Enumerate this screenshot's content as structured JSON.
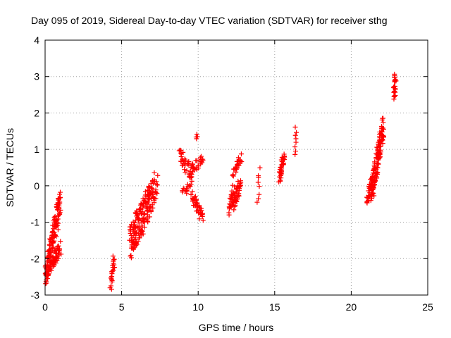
{
  "chart_data": {
    "type": "scatter",
    "title": "Day 095 of 2019, Sidereal Day-to-day VTEC variation (SDTVAR) for receiver sthg",
    "xlabel": "GPS time / hours",
    "ylabel": "SDTVAR / TECUs",
    "xlim": [
      0,
      25
    ],
    "ylim": [
      -3,
      4
    ],
    "xticks": [
      "0",
      "5",
      "10",
      "15",
      "20",
      "25"
    ],
    "yticks": [
      "-3",
      "-2",
      "-1",
      "0",
      "1",
      "2",
      "3",
      "4"
    ],
    "grid": true,
    "marker": "plus",
    "color": "#ff0000",
    "clusters": [
      {
        "x0": 0.0,
        "x1": 1.0,
        "y0": -2.55,
        "y1": -0.4,
        "n": 140,
        "spread": 0.35
      },
      {
        "x0": 0.2,
        "x1": 1.0,
        "y0": -2.3,
        "y1": -1.7,
        "n": 60,
        "spread": 0.2
      },
      {
        "x0": 4.3,
        "x1": 4.5,
        "y0": -2.75,
        "y1": -2.0,
        "n": 25,
        "spread": 0.15
      },
      {
        "x0": 5.6,
        "x1": 7.3,
        "y0": -1.5,
        "y1": 0.1,
        "n": 120,
        "spread": 0.45
      },
      {
        "x0": 5.5,
        "x1": 7.0,
        "y0": -1.55,
        "y1": -0.3,
        "n": 80,
        "spread": 0.5
      },
      {
        "x0": 8.8,
        "x1": 9.6,
        "y0": 0.9,
        "y1": 0.25,
        "n": 40,
        "spread": 0.2
      },
      {
        "x0": 9.0,
        "x1": 9.5,
        "y0": -0.2,
        "y1": 0.0,
        "n": 15,
        "spread": 0.1
      },
      {
        "x0": 9.6,
        "x1": 10.3,
        "y0": -0.3,
        "y1": -0.85,
        "n": 40,
        "spread": 0.2
      },
      {
        "x0": 9.6,
        "x1": 10.3,
        "y0": 0.45,
        "y1": 0.75,
        "n": 25,
        "spread": 0.15
      },
      {
        "x0": 9.9,
        "x1": 9.9,
        "y0": 1.28,
        "y1": 1.42,
        "n": 4,
        "spread": 0.03
      },
      {
        "x0": 12.0,
        "x1": 12.3,
        "y0": -0.7,
        "y1": -0.1,
        "n": 25,
        "spread": 0.15
      },
      {
        "x0": 12.3,
        "x1": 12.8,
        "y0": 0.35,
        "y1": 0.78,
        "n": 25,
        "spread": 0.1
      },
      {
        "x0": 12.3,
        "x1": 12.8,
        "y0": -0.5,
        "y1": 0.1,
        "n": 40,
        "spread": 0.2
      },
      {
        "x0": 13.9,
        "x1": 14.0,
        "y0": -0.45,
        "y1": 0.45,
        "n": 8,
        "spread": 0.05
      },
      {
        "x0": 15.3,
        "x1": 15.6,
        "y0": 0.15,
        "y1": 0.9,
        "n": 40,
        "spread": 0.12
      },
      {
        "x0": 16.3,
        "x1": 16.4,
        "y0": 0.85,
        "y1": 1.6,
        "n": 8,
        "spread": 0.03
      },
      {
        "x0": 21.0,
        "x1": 21.4,
        "y0": -0.5,
        "y1": 0.35,
        "n": 30,
        "spread": 0.12
      },
      {
        "x0": 21.3,
        "x1": 22.1,
        "y0": -0.25,
        "y1": 1.65,
        "n": 140,
        "spread": 0.3
      },
      {
        "x0": 22.8,
        "x1": 22.9,
        "y0": 2.4,
        "y1": 3.05,
        "n": 25,
        "spread": 0.08
      }
    ]
  }
}
